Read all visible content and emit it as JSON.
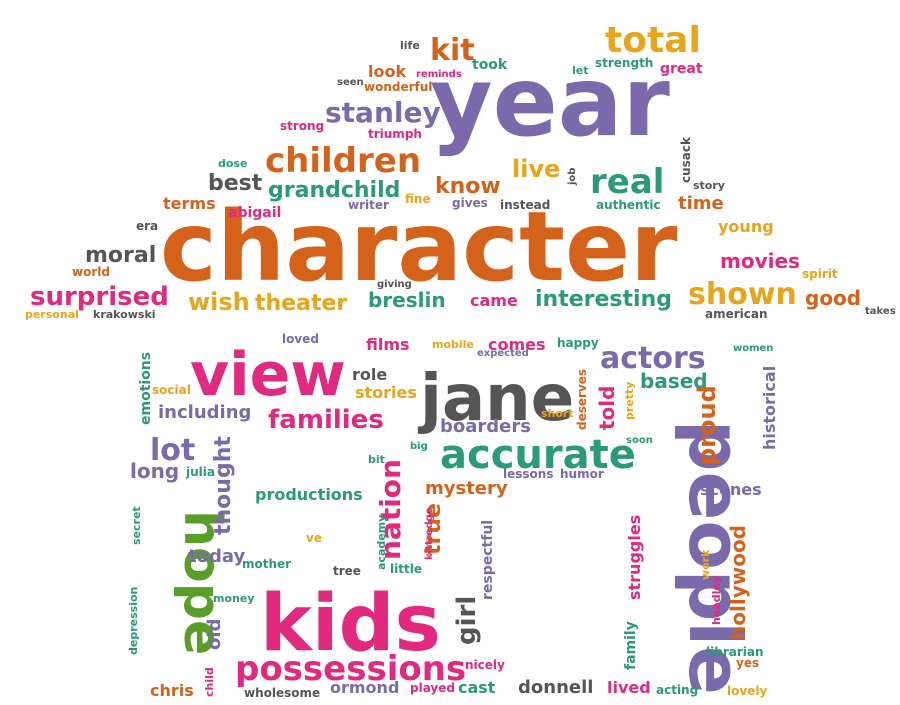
{
  "palette": {
    "orange": "#d4621a",
    "purple": "#7a6aab",
    "pink": "#e0297f",
    "green": "#5a9e2a",
    "teal": "#2a9a78",
    "gold": "#e6a51a",
    "gray": "#555555"
  },
  "words": [
    {
      "text": "year",
      "color": "purple"
    },
    {
      "text": "character",
      "color": "orange"
    },
    {
      "text": "people",
      "color": "purple"
    },
    {
      "text": "kids",
      "color": "pink"
    },
    {
      "text": "jane",
      "color": "gray"
    },
    {
      "text": "view",
      "color": "pink"
    },
    {
      "text": "hope",
      "color": "green"
    },
    {
      "text": "possessions",
      "color": "pink"
    },
    {
      "text": "accurate",
      "color": "teal"
    },
    {
      "text": "children",
      "color": "orange"
    },
    {
      "text": "total",
      "color": "gold"
    },
    {
      "text": "actors",
      "color": "purple"
    },
    {
      "text": "real",
      "color": "teal"
    },
    {
      "text": "stanley",
      "color": "purple"
    },
    {
      "text": "kit",
      "color": "orange"
    },
    {
      "text": "shown",
      "color": "gold"
    },
    {
      "text": "surprised",
      "color": "pink"
    },
    {
      "text": "families",
      "color": "pink"
    },
    {
      "text": "lot",
      "color": "purple"
    },
    {
      "text": "nation",
      "color": "pink"
    },
    {
      "text": "grandchild",
      "color": "teal"
    },
    {
      "text": "know",
      "color": "orange"
    },
    {
      "text": "live",
      "color": "gold"
    },
    {
      "text": "interesting",
      "color": "teal"
    },
    {
      "text": "wish",
      "color": "gold"
    },
    {
      "text": "theater",
      "color": "gold"
    },
    {
      "text": "breslin",
      "color": "teal"
    },
    {
      "text": "proud",
      "color": "orange"
    },
    {
      "text": "girl",
      "color": "gray"
    },
    {
      "text": "hollywood",
      "color": "orange"
    },
    {
      "text": "moral",
      "color": "gray"
    },
    {
      "text": "movies",
      "color": "pink"
    },
    {
      "text": "good",
      "color": "orange"
    },
    {
      "text": "best",
      "color": "gray"
    },
    {
      "text": "boarders",
      "color": "purple"
    },
    {
      "text": "including",
      "color": "purple"
    },
    {
      "text": "true",
      "color": "orange"
    },
    {
      "text": "thought",
      "color": "purple"
    },
    {
      "text": "productions",
      "color": "teal"
    },
    {
      "text": "mystery",
      "color": "orange"
    },
    {
      "text": "based",
      "color": "teal"
    },
    {
      "text": "long",
      "color": "purple"
    },
    {
      "text": "today",
      "color": "purple"
    },
    {
      "text": "stories",
      "color": "gold"
    },
    {
      "text": "role",
      "color": "gray"
    },
    {
      "text": "told",
      "color": "pink"
    },
    {
      "text": "time",
      "color": "orange"
    },
    {
      "text": "terms",
      "color": "orange"
    },
    {
      "text": "abigail",
      "color": "pink"
    },
    {
      "text": "young",
      "color": "gold"
    },
    {
      "text": "came",
      "color": "pink"
    },
    {
      "text": "comes",
      "color": "pink"
    },
    {
      "text": "films",
      "color": "pink"
    },
    {
      "text": "scenes",
      "color": "purple"
    },
    {
      "text": "struggles",
      "color": "pink"
    },
    {
      "text": "historical",
      "color": "purple"
    },
    {
      "text": "donnell",
      "color": "gray"
    },
    {
      "text": "lived",
      "color": "pink"
    },
    {
      "text": "cast",
      "color": "teal"
    },
    {
      "text": "ormond",
      "color": "purple"
    },
    {
      "text": "chris",
      "color": "orange"
    },
    {
      "text": "old",
      "color": "purple"
    },
    {
      "text": "look",
      "color": "orange"
    },
    {
      "text": "took",
      "color": "teal"
    },
    {
      "text": "strong",
      "color": "pink"
    },
    {
      "text": "triumph",
      "color": "pink"
    },
    {
      "text": "writer",
      "color": "purple"
    },
    {
      "text": "fine",
      "color": "gold"
    },
    {
      "text": "gives",
      "color": "purple"
    },
    {
      "text": "instead",
      "color": "gray"
    },
    {
      "text": "authentic",
      "color": "teal"
    },
    {
      "text": "story",
      "color": "gray"
    },
    {
      "text": "cusack",
      "color": "gray"
    },
    {
      "text": "job",
      "color": "gray"
    },
    {
      "text": "strength",
      "color": "teal"
    },
    {
      "text": "great",
      "color": "pink"
    },
    {
      "text": "let",
      "color": "teal"
    },
    {
      "text": "life",
      "color": "gray"
    },
    {
      "text": "seen",
      "color": "gray"
    },
    {
      "text": "reminds",
      "color": "pink"
    },
    {
      "text": "wonderful",
      "color": "orange"
    },
    {
      "text": "dose",
      "color": "teal"
    },
    {
      "text": "era",
      "color": "gray"
    },
    {
      "text": "world",
      "color": "orange"
    },
    {
      "text": "personal",
      "color": "gold"
    },
    {
      "text": "krakowski",
      "color": "gray"
    },
    {
      "text": "giving",
      "color": "gray"
    },
    {
      "text": "spirit",
      "color": "gold"
    },
    {
      "text": "takes",
      "color": "gray"
    },
    {
      "text": "american",
      "color": "gray"
    },
    {
      "text": "loved",
      "color": "purple"
    },
    {
      "text": "mobile",
      "color": "gold"
    },
    {
      "text": "expected",
      "color": "purple"
    },
    {
      "text": "happy",
      "color": "teal"
    },
    {
      "text": "women",
      "color": "teal"
    },
    {
      "text": "emotions",
      "color": "teal"
    },
    {
      "text": "social",
      "color": "gold"
    },
    {
      "text": "short",
      "color": "gold"
    },
    {
      "text": "deserves",
      "color": "orange"
    },
    {
      "text": "pretty",
      "color": "gold"
    },
    {
      "text": "soon",
      "color": "teal"
    },
    {
      "text": "bit",
      "color": "teal"
    },
    {
      "text": "big",
      "color": "teal"
    },
    {
      "text": "julia",
      "color": "teal"
    },
    {
      "text": "lessons",
      "color": "purple"
    },
    {
      "text": "humor",
      "color": "purple"
    },
    {
      "text": "secret",
      "color": "teal"
    },
    {
      "text": "ve",
      "color": "gold"
    },
    {
      "text": "academy",
      "color": "teal"
    },
    {
      "text": "kittredge",
      "color": "pink"
    },
    {
      "text": "respectful",
      "color": "purple"
    },
    {
      "text": "tree",
      "color": "gray"
    },
    {
      "text": "little",
      "color": "teal"
    },
    {
      "text": "mother",
      "color": "teal"
    },
    {
      "text": "money",
      "color": "teal"
    },
    {
      "text": "depression",
      "color": "teal"
    },
    {
      "text": "child",
      "color": "pink"
    },
    {
      "text": "wholesome",
      "color": "gray"
    },
    {
      "text": "played",
      "color": "pink"
    },
    {
      "text": "nicely",
      "color": "pink"
    },
    {
      "text": "acting",
      "color": "teal"
    },
    {
      "text": "lovely",
      "color": "gold"
    },
    {
      "text": "family",
      "color": "teal"
    },
    {
      "text": "work",
      "color": "gold"
    },
    {
      "text": "headley",
      "color": "pink"
    },
    {
      "text": "librarian",
      "color": "teal"
    },
    {
      "text": "yes",
      "color": "orange"
    }
  ]
}
